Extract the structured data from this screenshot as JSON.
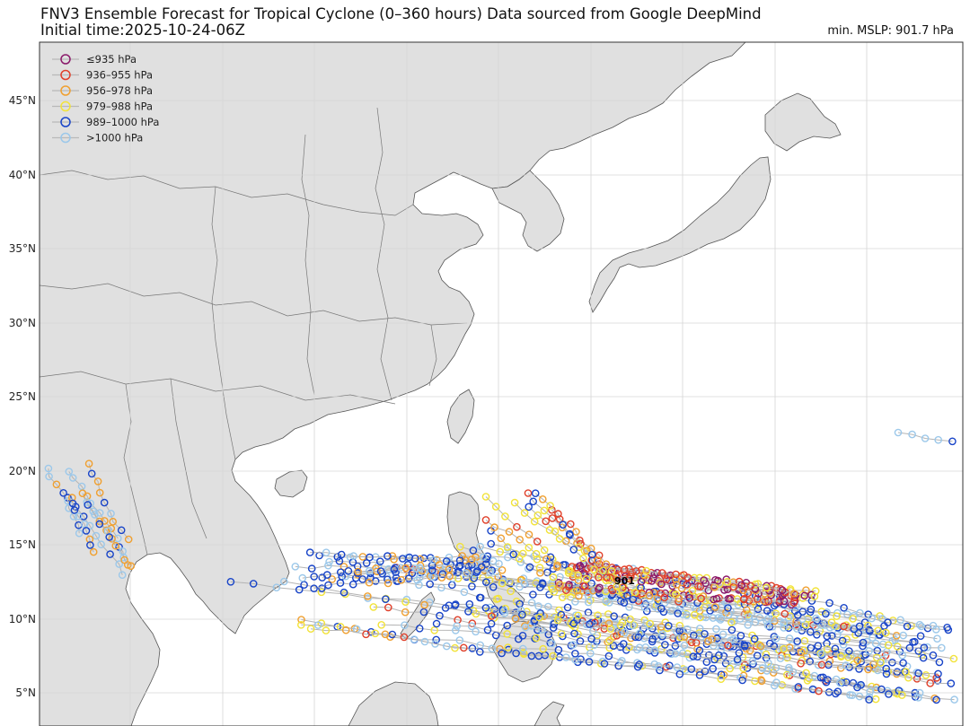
{
  "header": {
    "title_line1": "FNV3 Ensemble Forecast for Tropical Cyclone (0–360 hours) Data sourced from Google DeepMind",
    "title_line2": "Initial time:2025-10-24-06Z",
    "min_mslp": "min. MSLP: 901.7 hPa"
  },
  "map": {
    "land_color": "#e0e0e0",
    "sea_color": "#ffffff",
    "coast_color": "#555555",
    "border_color": "#777777",
    "grid_color": "#d6d6d6",
    "lat_labels": [
      "45°N",
      "40°N",
      "35°N",
      "30°N",
      "25°N",
      "20°N",
      "15°N",
      "10°N",
      "5°N"
    ],
    "annotation": "901"
  },
  "legend": {
    "items": [
      {
        "label": "≤935 hPa",
        "color": "#8b1a6b"
      },
      {
        "label": "936–955 hPa",
        "color": "#e0402a"
      },
      {
        "label": "956–978 hPa",
        "color": "#f0a030"
      },
      {
        "label": "979–988 hPa",
        "color": "#f2e33a"
      },
      {
        "label": "989–1000 hPa",
        "color": "#1844c8"
      },
      {
        "label": ">1000 hPa",
        "color": "#9cc8ea"
      }
    ]
  }
}
